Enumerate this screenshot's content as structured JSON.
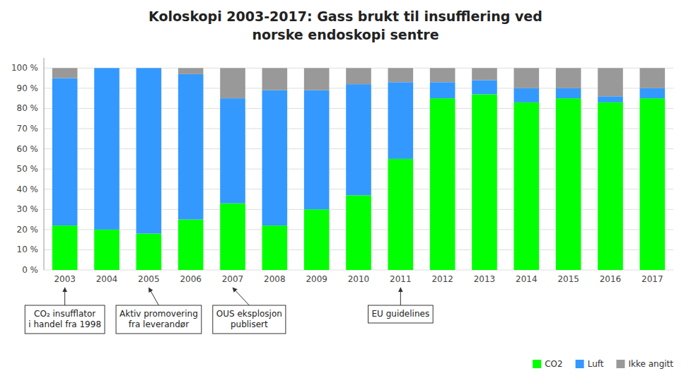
{
  "chart_data": {
    "type": "bar",
    "stacked": true,
    "title": "Koloskopi 2003-2017: Gass brukt til insufflering ved",
    "subtitle": "norske endoskopi sentre",
    "categories": [
      "2003",
      "2004",
      "2005",
      "2006",
      "2007",
      "2008",
      "2009",
      "2010",
      "2011",
      "2012",
      "2013",
      "2014",
      "2015",
      "2016",
      "2017"
    ],
    "series": [
      {
        "name": "CO2",
        "color": "#00ff00",
        "values": [
          22,
          20,
          18,
          25,
          33,
          22,
          30,
          37,
          55,
          85,
          87,
          83,
          85,
          83,
          85
        ]
      },
      {
        "name": "Luft",
        "color": "#3399ff",
        "values": [
          73,
          80,
          82,
          72,
          52,
          67,
          59,
          55,
          38,
          8,
          7,
          7,
          5,
          3,
          5
        ]
      },
      {
        "name": "Ikke angitt",
        "color": "#999999",
        "values": [
          5,
          0,
          0,
          3,
          15,
          11,
          11,
          8,
          7,
          7,
          6,
          10,
          10,
          14,
          10
        ]
      }
    ],
    "ylim": [
      0,
      105
    ],
    "yticks": [
      {
        "value": 0,
        "label": "0 %"
      },
      {
        "value": 10,
        "label": "10 %"
      },
      {
        "value": 20,
        "label": "20 %"
      },
      {
        "value": 30,
        "label": "30 %"
      },
      {
        "value": 40,
        "label": "40 %"
      },
      {
        "value": 50,
        "label": "50 %"
      },
      {
        "value": 60,
        "label": "60 %"
      },
      {
        "value": 70,
        "label": "70 %"
      },
      {
        "value": 80,
        "label": "80 %"
      },
      {
        "value": 90,
        "label": "90 %"
      },
      {
        "value": 100,
        "label": "100 %"
      }
    ],
    "grid": true,
    "legend": "bottom",
    "annotations": [
      {
        "text": "CO₂ insufflator\ni handel fra 1998",
        "x": "2003"
      },
      {
        "text": "Aktiv promovering\nfra leverandør",
        "x": "2005"
      },
      {
        "text": "OUS eksplosjon\npublisert",
        "x": "2007"
      },
      {
        "text": "EU guidelines",
        "x": "2011"
      }
    ]
  }
}
